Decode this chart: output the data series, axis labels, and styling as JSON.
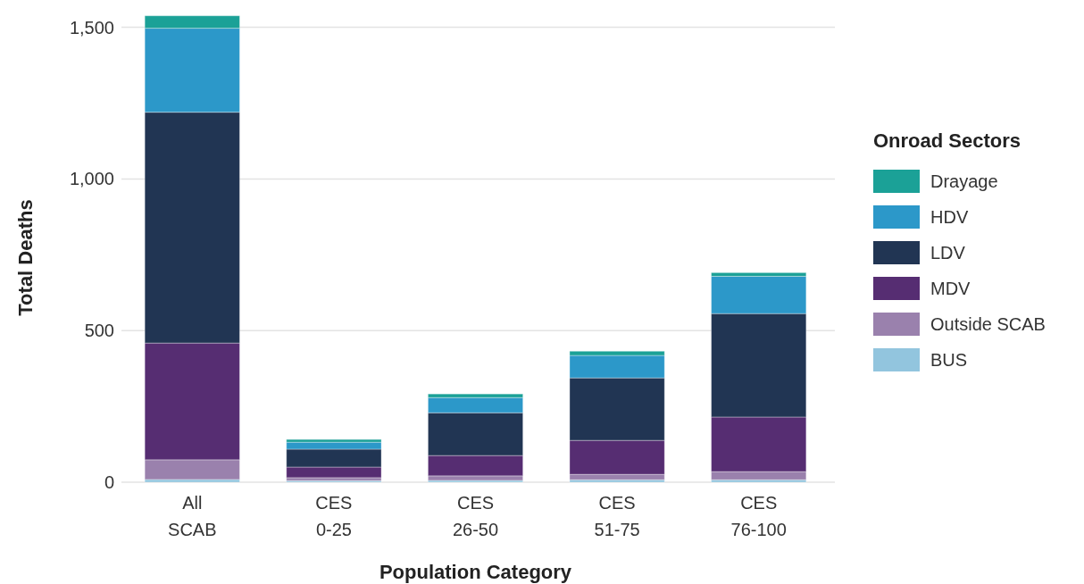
{
  "chart_data": {
    "type": "bar",
    "stacked": true,
    "xlabel": "Population Category",
    "ylabel": "Total Deaths",
    "legend_title": "Onroad Sectors",
    "legend": "right",
    "grid": "y",
    "categories": [
      "All SCAB",
      "CES 0-25",
      "CES 26-50",
      "CES 51-75",
      "CES 76-100"
    ],
    "ylim": [
      0,
      1540
    ],
    "yticks": [
      0,
      500,
      {
        "value": 1000,
        "label": "1,000"
      },
      {
        "value": 1500,
        "label": "1,500"
      }
    ],
    "series": [
      {
        "name": "BUS",
        "color": "#92c5de",
        "values": [
          9,
          5,
          6,
          8,
          8
        ]
      },
      {
        "name": "Outside SCAB",
        "color": "#9a81ad",
        "values": [
          65,
          10,
          15,
          18,
          27
        ]
      },
      {
        "name": "MDV",
        "color": "#562d72",
        "values": [
          385,
          35,
          67,
          112,
          180
        ]
      },
      {
        "name": "LDV",
        "color": "#213553",
        "values": [
          761,
          59,
          141,
          206,
          341
        ]
      },
      {
        "name": "HDV",
        "color": "#2c98c9",
        "values": [
          277,
          23,
          50,
          74,
          123
        ]
      },
      {
        "name": "Drayage",
        "color": "#1ba197",
        "values": [
          41,
          9,
          12,
          14,
          12
        ]
      }
    ]
  }
}
